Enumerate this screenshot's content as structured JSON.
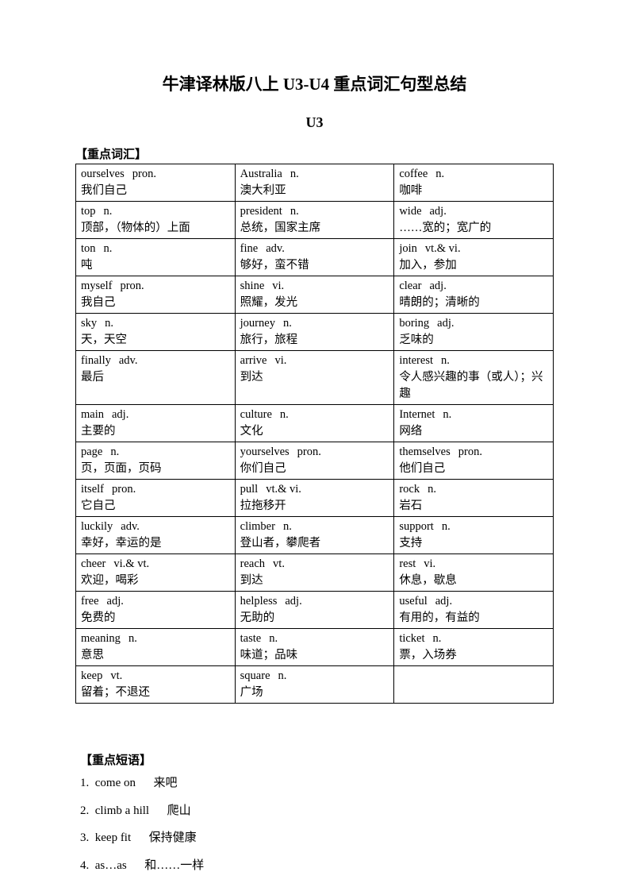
{
  "title": "牛津译林版八上 U3-U4 重点词汇句型总结",
  "subtitle": "U3",
  "vocab_label": "【重点词汇】",
  "phrase_label": "【重点短语】",
  "rows": [
    [
      {
        "word": "ourselves",
        "pos": "pron.",
        "zh": "我们自己"
      },
      {
        "word": "Australia",
        "pos": "n.",
        "zh": "澳大利亚"
      },
      {
        "word": "coffee",
        "pos": "n.",
        "zh": "咖啡"
      }
    ],
    [
      {
        "word": "top",
        "pos": "n.",
        "zh": "顶部，（物体的）上面"
      },
      {
        "word": "president",
        "pos": "n.",
        "zh": "总统，国家主席"
      },
      {
        "word": "wide",
        "pos": "adj.",
        "zh": "……宽的；宽广的"
      }
    ],
    [
      {
        "word": "ton",
        "pos": "n.",
        "zh": "吨"
      },
      {
        "word": "fine",
        "pos": "adv.",
        "zh": "够好，蛮不错"
      },
      {
        "word": "join",
        "pos": "vt.& vi.",
        "zh": "加入，参加"
      }
    ],
    [
      {
        "word": "myself",
        "pos": "pron.",
        "zh": "我自己"
      },
      {
        "word": "shine",
        "pos": "vi.",
        "zh": "照耀，发光"
      },
      {
        "word": "clear",
        "pos": "adj.",
        "zh": "晴朗的；清晰的"
      }
    ],
    [
      {
        "word": "sky",
        "pos": "n.",
        "zh": "天，天空"
      },
      {
        "word": "journey",
        "pos": "n.",
        "zh": "旅行，旅程"
      },
      {
        "word": "boring",
        "pos": "adj.",
        "zh": "乏味的"
      }
    ],
    [
      {
        "word": "finally",
        "pos": "adv.",
        "zh": "最后"
      },
      {
        "word": "arrive",
        "pos": "vi.",
        "zh": "到达"
      },
      {
        "word": "interest",
        "pos": "n.",
        "zh": "令人感兴趣的事（或人）；兴趣"
      }
    ],
    [
      {
        "word": "main",
        "pos": "adj.",
        "zh": "主要的"
      },
      {
        "word": "culture",
        "pos": "n.",
        "zh": "文化"
      },
      {
        "word": "Internet",
        "pos": "n.",
        "zh": "网络"
      }
    ],
    [
      {
        "word": "page",
        "pos": "n.",
        "zh": "页，页面，页码"
      },
      {
        "word": "yourselves",
        "pos": "pron.",
        "zh": "你们自己"
      },
      {
        "word": "themselves",
        "pos": "pron.",
        "zh": "他们自己"
      }
    ],
    [
      {
        "word": "itself",
        "pos": "pron.",
        "zh": "它自己"
      },
      {
        "word": "pull",
        "pos": "vt.& vi.",
        "zh": "拉拖移开"
      },
      {
        "word": "rock",
        "pos": "n.",
        "zh": "岩石"
      }
    ],
    [
      {
        "word": "luckily",
        "pos": "adv.",
        "zh": "幸好，幸运的是"
      },
      {
        "word": "climber",
        "pos": "n.",
        "zh": "登山者，攀爬者"
      },
      {
        "word": "support",
        "pos": "n.",
        "zh": "支持"
      }
    ],
    [
      {
        "word": "cheer",
        "pos": "vi.& vt.",
        "zh": "欢迎，喝彩"
      },
      {
        "word": "reach",
        "pos": "vt.",
        "zh": "到达"
      },
      {
        "word": "rest",
        "pos": "vi.",
        "zh": "休息，歇息"
      }
    ],
    [
      {
        "word": "free",
        "pos": "adj.",
        "zh": "免费的"
      },
      {
        "word": "helpless",
        "pos": "adj.",
        "zh": "无助的"
      },
      {
        "word": "useful",
        "pos": "adj.",
        "zh": "有用的，有益的"
      }
    ],
    [
      {
        "word": "meaning",
        "pos": "n.",
        "zh": "意思"
      },
      {
        "word": "taste",
        "pos": "n.",
        "zh": "味道；品味"
      },
      {
        "word": "ticket",
        "pos": "n.",
        "zh": "票，入场券"
      }
    ],
    [
      {
        "word": "keep",
        "pos": "vt.",
        "zh": "留着；不退还"
      },
      {
        "word": "square",
        "pos": "n.",
        "zh": "广场"
      },
      {
        "word": "",
        "pos": "",
        "zh": ""
      }
    ]
  ],
  "phrases": [
    {
      "num": "1.",
      "en": "come on",
      "gap": "      ",
      "zh": "来吧"
    },
    {
      "num": "2.",
      "en": "climb a hill",
      "gap": "      ",
      "zh": "爬山"
    },
    {
      "num": "3.",
      "en": "keep fit",
      "gap": "      ",
      "zh": "保持健康"
    },
    {
      "num": "4.",
      "en": "as…as",
      "gap": "      ",
      "zh": "和……一样"
    }
  ]
}
